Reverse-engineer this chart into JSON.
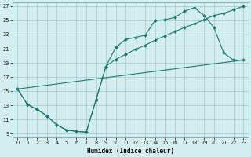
{
  "xlabel": "Humidex (Indice chaleur)",
  "bg_color": "#d4eef0",
  "grid_color": "#aacdd4",
  "line_color": "#1a7a6e",
  "xlim": [
    -0.5,
    23.5
  ],
  "ylim": [
    8.5,
    27.5
  ],
  "xticks": [
    0,
    1,
    2,
    3,
    4,
    5,
    6,
    7,
    8,
    9,
    10,
    11,
    12,
    13,
    14,
    15,
    16,
    17,
    18,
    19,
    20,
    21,
    22,
    23
  ],
  "yticks": [
    9,
    11,
    13,
    15,
    17,
    19,
    21,
    23,
    25,
    27
  ],
  "line1_x": [
    0,
    1,
    2,
    3,
    4,
    5,
    6,
    7,
    8,
    9,
    10,
    11,
    12,
    13,
    14,
    15,
    16,
    17,
    18,
    19,
    20,
    21,
    22,
    23
  ],
  "line1_y": [
    15.3,
    13.1,
    12.4,
    11.5,
    10.2,
    9.5,
    9.3,
    9.2,
    13.8,
    18.5,
    21.2,
    22.3,
    22.6,
    22.9,
    25.0,
    25.1,
    25.4,
    26.3,
    26.8,
    25.7,
    24.0,
    20.4,
    19.4,
    19.4
  ],
  "line2_x": [
    0,
    1,
    2,
    3,
    4,
    5,
    6,
    7,
    8,
    9,
    10,
    11,
    12,
    13,
    14,
    15,
    16,
    17,
    18,
    19,
    20,
    21,
    22,
    23
  ],
  "line2_y": [
    15.3,
    13.1,
    12.4,
    11.5,
    10.2,
    9.5,
    9.3,
    9.2,
    13.8,
    18.5,
    19.5,
    20.2,
    20.9,
    21.5,
    22.2,
    22.8,
    23.4,
    24.0,
    24.5,
    25.1,
    25.7,
    26.0,
    26.5,
    27.0
  ],
  "line3_x": [
    0,
    23
  ],
  "line3_y": [
    15.3,
    19.4
  ]
}
